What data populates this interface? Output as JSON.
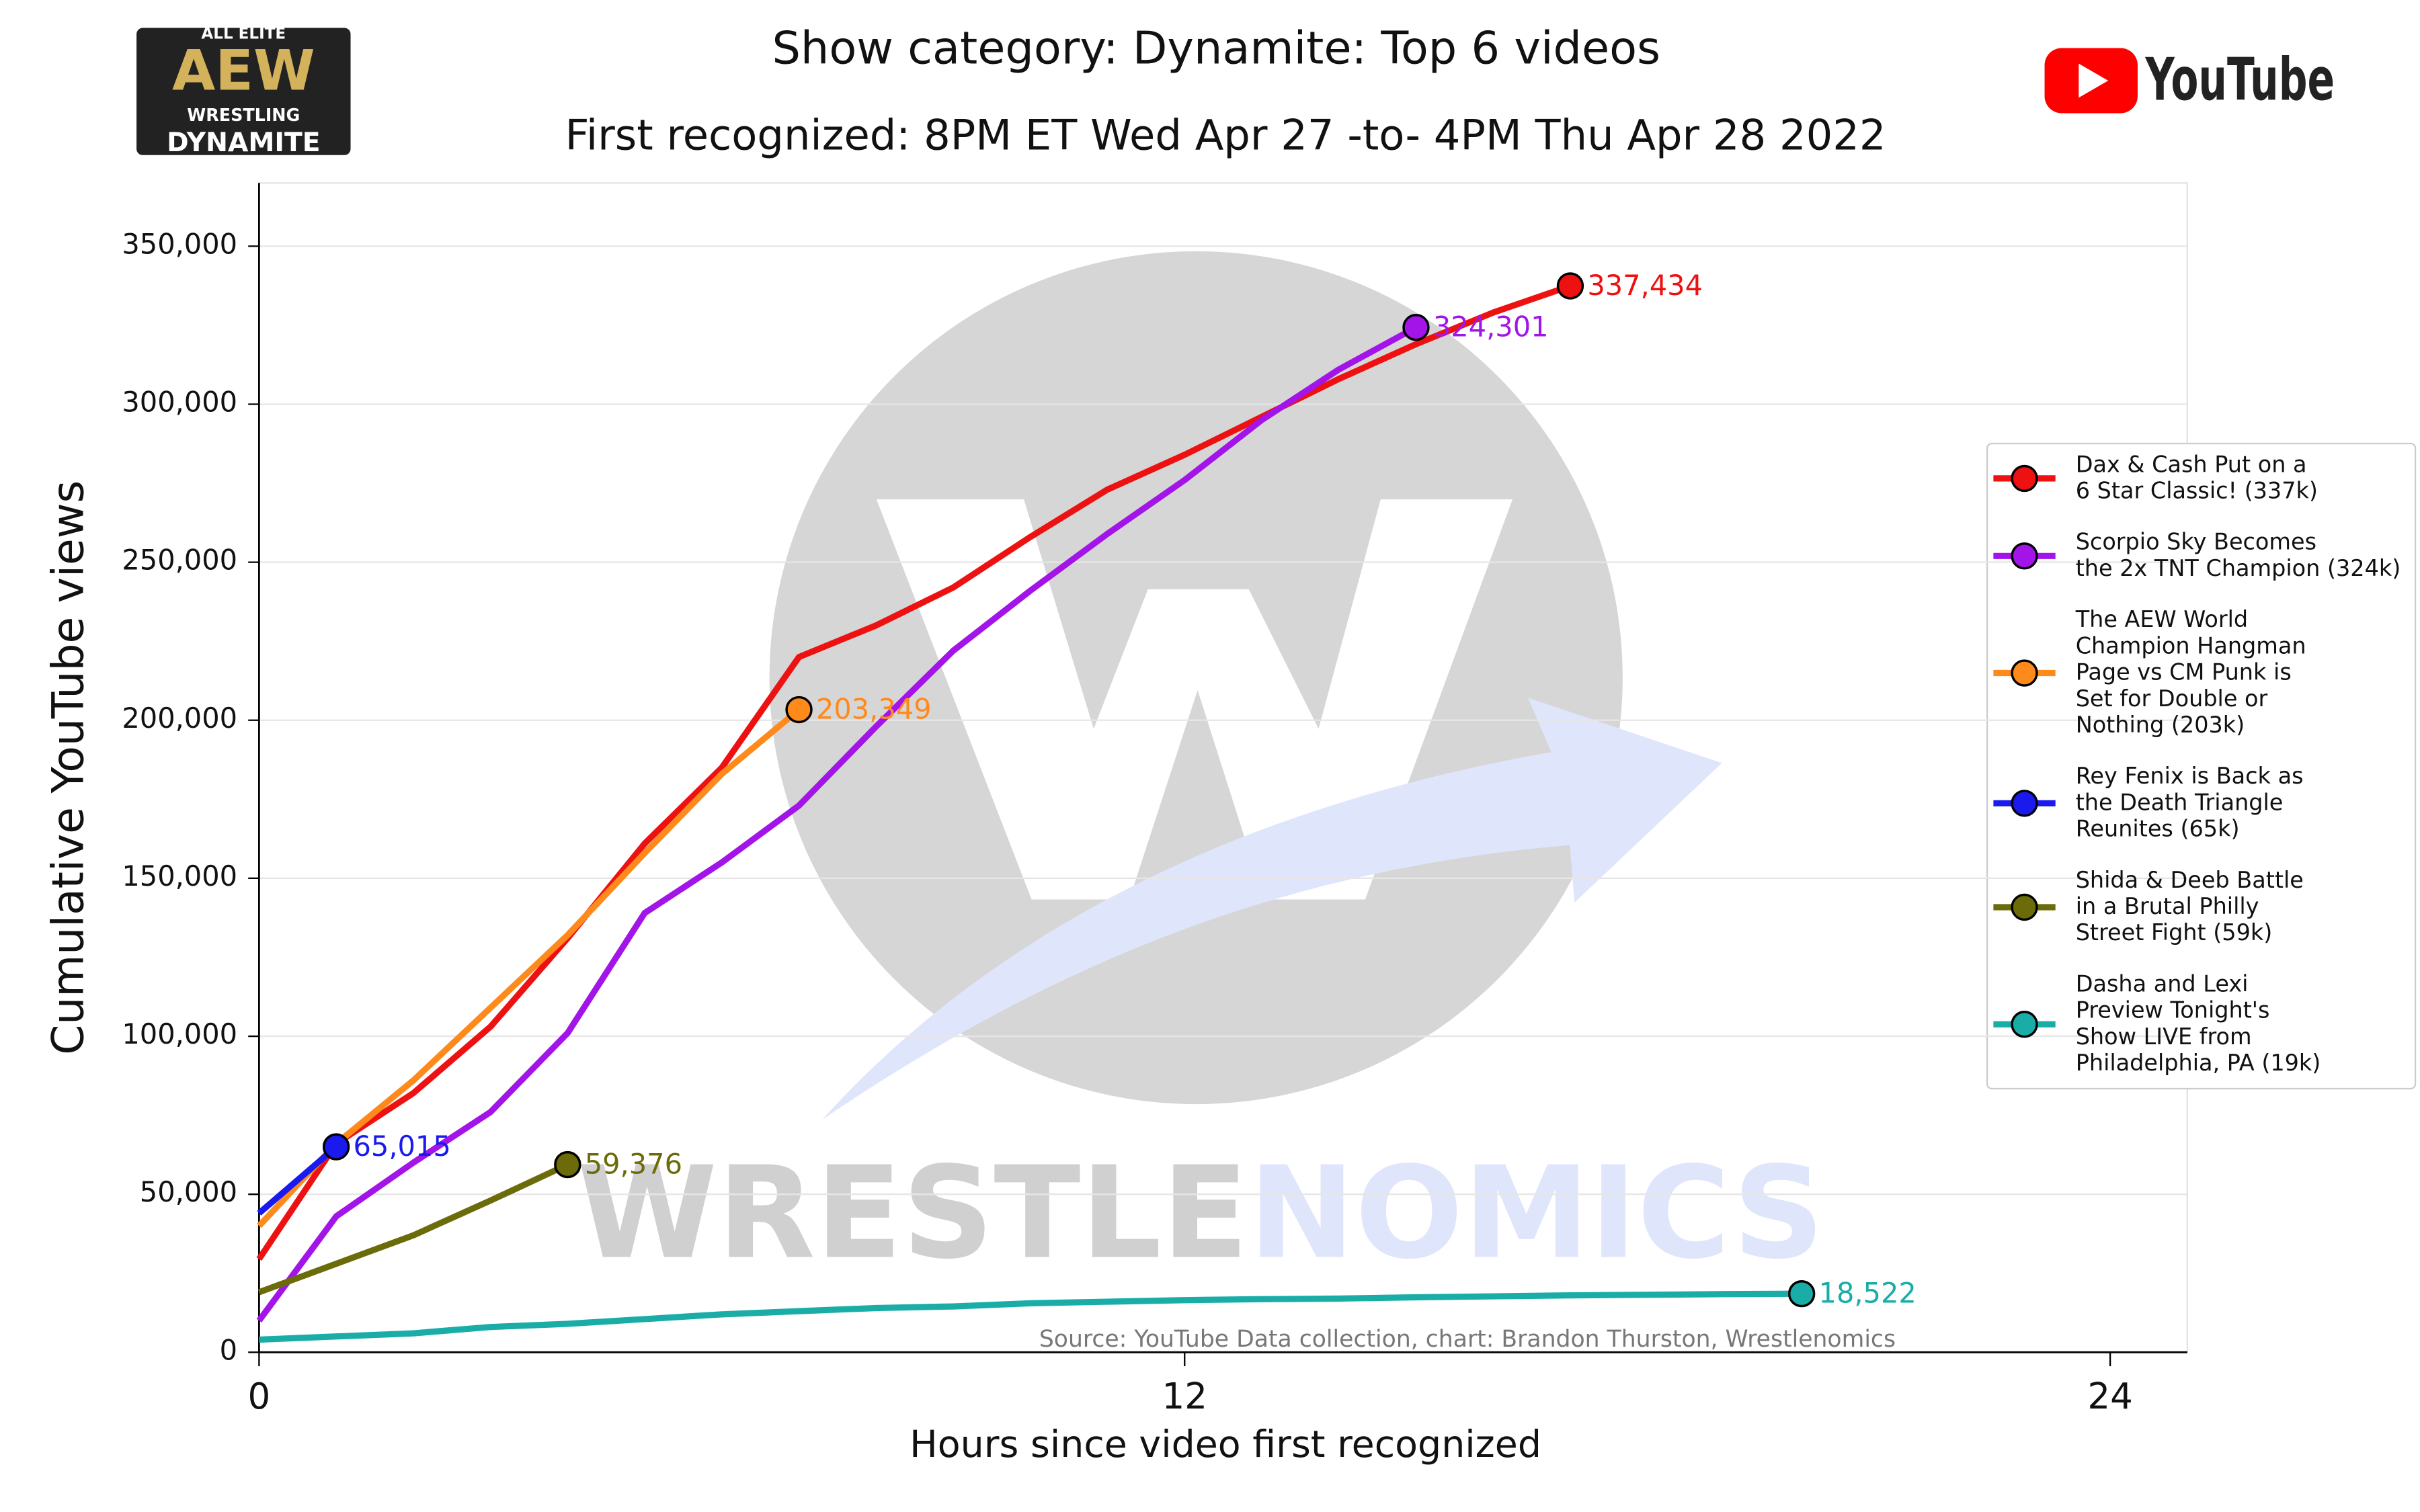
{
  "chart_data": {
    "type": "line",
    "title": "Show category: Dynamite: Top 6 videos",
    "subtitle": "First recognized: 8PM ET Wed Apr 27 -to- 4PM Thu Apr 28 2022",
    "xlabel": "Hours since video first recognized",
    "ylabel": "Cumulative YouTube views",
    "xlim": [
      0,
      25
    ],
    "xticks": [
      0,
      12,
      24
    ],
    "ylim": [
      0,
      370000
    ],
    "yticks": [
      0,
      {
        "value": 50000,
        "label": "50,000"
      },
      {
        "value": 100000,
        "label": "100,000"
      },
      {
        "value": 150000,
        "label": "150,000"
      },
      {
        "value": 200000,
        "label": "200,000"
      },
      {
        "value": 250000,
        "label": "250,000"
      },
      {
        "value": 300000,
        "label": "300,000"
      },
      {
        "value": 350000,
        "label": "350,000"
      }
    ],
    "grid": true,
    "legend": "right",
    "series": [
      {
        "name": "Dax & Cash Put on a\n6 Star Classic! (337k)",
        "color": "#ee1111",
        "x": [
          0,
          1,
          2,
          3,
          4,
          5,
          6,
          7,
          8,
          9,
          10,
          11,
          12,
          13,
          14,
          15,
          16,
          17
        ],
        "values": [
          29500,
          66000,
          82000,
          103000,
          131000,
          161000,
          185000,
          220000,
          230000,
          242000,
          258000,
          273000,
          284000,
          296000,
          308000,
          319000,
          329000,
          337434
        ],
        "value_labels": [
          null,
          null,
          null,
          null,
          null,
          null,
          null,
          null,
          null,
          null,
          null,
          null,
          null,
          null,
          null,
          null,
          null,
          "337,434"
        ]
      },
      {
        "name": "Scorpio Sky Becomes\nthe 2x TNT Champion (324k)",
        "color": "#a314e8",
        "x": [
          0,
          1,
          2,
          3,
          4,
          5,
          6,
          7,
          8,
          9,
          10,
          11,
          12,
          13,
          14,
          15
        ],
        "values": [
          10000,
          43000,
          60000,
          76000,
          101000,
          139000,
          155000,
          173000,
          198000,
          222000,
          241000,
          259000,
          276000,
          295000,
          311000,
          324301
        ],
        "value_labels": [
          null,
          null,
          null,
          null,
          null,
          null,
          null,
          null,
          null,
          null,
          null,
          null,
          null,
          null,
          null,
          "324,301"
        ]
      },
      {
        "name": "The AEW World\nChampion Hangman\nPage vs CM Punk is\nSet for Double or\nNothing (203k)",
        "color": "#ff8a1c",
        "x": [
          0,
          1,
          2,
          3,
          4,
          5,
          6,
          7
        ],
        "values": [
          40000,
          66000,
          86000,
          109000,
          132000,
          158000,
          183000,
          203349
        ],
        "value_labels": [
          null,
          null,
          null,
          null,
          null,
          null,
          null,
          "203,349"
        ]
      },
      {
        "name": "Rey Fenix is Back as\nthe Death Triangle\nReunites (65k)",
        "color": "#1a1aee",
        "x": [
          0,
          1
        ],
        "values": [
          44000,
          65015
        ],
        "value_labels": [
          null,
          "65,015"
        ]
      },
      {
        "name": "Shida & Deeb Battle\nin a Brutal Philly\nStreet Fight (59k)",
        "color": "#6b6b0a",
        "x": [
          0,
          1,
          2,
          3,
          4
        ],
        "values": [
          19000,
          28000,
          37000,
          48000,
          59376
        ],
        "value_labels": [
          null,
          null,
          null,
          null,
          "59,376"
        ]
      },
      {
        "name": "Dasha and Lexi\nPreview Tonight's\nShow LIVE from\nPhiladelphia, PA (19k)",
        "color": "#1aada8",
        "x": [
          0,
          1,
          2,
          3,
          4,
          5,
          6,
          7,
          8,
          9,
          10,
          11,
          12,
          13,
          14,
          15,
          16,
          17,
          18,
          19,
          20
        ],
        "values": [
          4000,
          5000,
          6000,
          8000,
          9000,
          10500,
          12000,
          13000,
          14000,
          14500,
          15500,
          16000,
          16500,
          16800,
          17000,
          17400,
          17700,
          18000,
          18200,
          18400,
          18522
        ],
        "value_labels": [
          null,
          null,
          null,
          null,
          null,
          null,
          null,
          null,
          null,
          null,
          null,
          null,
          null,
          null,
          null,
          null,
          null,
          null,
          null,
          null,
          "18,522"
        ]
      }
    ],
    "source": "Source: YouTube    Data collection, chart: Brandon Thurston, Wrestlenomics",
    "watermark": [
      "WRESTLE",
      "NOMICS"
    ],
    "logos": {
      "aew": [
        "ALL ELITE",
        "AEW",
        "WRESTLING",
        "DYNAMITE"
      ],
      "youtube": "YouTube"
    }
  }
}
